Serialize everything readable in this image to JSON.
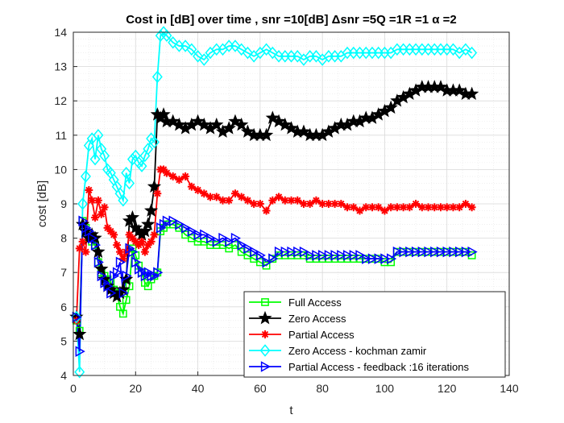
{
  "chart_data": {
    "type": "line",
    "title": "Cost in [dB] over time , snr =10[dB] Δsnr =5Q =1R =1 α =2",
    "xlabel": "t",
    "ylabel": "cost [dB]",
    "xlim": [
      0,
      140
    ],
    "ylim": [
      4,
      14
    ],
    "xticks": [
      0,
      20,
      40,
      60,
      80,
      100,
      120,
      140
    ],
    "yticks": [
      4,
      5,
      6,
      7,
      8,
      9,
      10,
      11,
      12,
      13,
      14
    ],
    "grid": true,
    "minor_grid": true,
    "legend_position": "bottom-right",
    "series": [
      {
        "name": "Full Access",
        "color": "#00ff00",
        "marker": "square",
        "x": [
          1,
          2,
          3,
          4,
          5,
          6,
          7,
          8,
          9,
          10,
          11,
          12,
          13,
          14,
          15,
          16,
          17,
          18,
          19,
          20,
          21,
          22,
          23,
          24,
          25,
          26,
          27,
          28,
          29,
          30,
          32,
          34,
          36,
          38,
          40,
          42,
          44,
          46,
          48,
          50,
          52,
          54,
          56,
          58,
          60,
          62,
          64,
          66,
          68,
          70,
          72,
          74,
          76,
          78,
          80,
          82,
          84,
          86,
          88,
          90,
          92,
          94,
          96,
          98,
          100,
          102,
          104,
          106,
          108,
          110,
          112,
          114,
          116,
          118,
          120,
          122,
          124,
          126,
          128
        ],
        "y": [
          5.6,
          5.3,
          8.5,
          8.3,
          8.0,
          7.9,
          7.8,
          7.3,
          7.0,
          6.9,
          6.8,
          6.7,
          6.5,
          6.4,
          6.0,
          5.8,
          6.2,
          6.6,
          7.7,
          7.5,
          7.2,
          7.0,
          6.7,
          6.6,
          6.8,
          6.9,
          7.0,
          8.2,
          8.3,
          8.4,
          8.4,
          8.3,
          8.1,
          8.0,
          7.9,
          7.9,
          7.8,
          7.8,
          7.8,
          7.7,
          7.8,
          7.6,
          7.5,
          7.4,
          7.3,
          7.2,
          7.4,
          7.5,
          7.5,
          7.5,
          7.5,
          7.5,
          7.4,
          7.4,
          7.4,
          7.4,
          7.4,
          7.4,
          7.4,
          7.4,
          7.4,
          7.4,
          7.4,
          7.4,
          7.3,
          7.3,
          7.6,
          7.6,
          7.6,
          7.6,
          7.6,
          7.6,
          7.6,
          7.6,
          7.6,
          7.6,
          7.6,
          7.6,
          7.5
        ]
      },
      {
        "name": "Zero Access",
        "color": "#000000",
        "marker": "star",
        "x": [
          1,
          2,
          3,
          4,
          5,
          6,
          7,
          8,
          9,
          10,
          11,
          12,
          13,
          14,
          15,
          16,
          17,
          18,
          19,
          20,
          21,
          22,
          23,
          24,
          25,
          26,
          27,
          28,
          29,
          30,
          32,
          34,
          36,
          38,
          40,
          42,
          44,
          46,
          48,
          50,
          52,
          54,
          56,
          58,
          60,
          62,
          64,
          66,
          68,
          70,
          72,
          74,
          76,
          78,
          80,
          82,
          84,
          86,
          88,
          90,
          92,
          94,
          96,
          98,
          100,
          102,
          104,
          106,
          108,
          110,
          112,
          114,
          116,
          118,
          120,
          122,
          124,
          126,
          128
        ],
        "y": [
          5.7,
          5.2,
          8.4,
          8.2,
          8.0,
          8.1,
          8.0,
          7.6,
          7.1,
          6.8,
          6.6,
          6.5,
          6.4,
          6.3,
          6.4,
          6.5,
          6.8,
          8.5,
          8.6,
          8.3,
          8.2,
          8.1,
          8.2,
          8.4,
          8.8,
          9.5,
          11.6,
          11.5,
          11.6,
          11.4,
          11.4,
          11.3,
          11.2,
          11.3,
          11.4,
          11.3,
          11.2,
          11.3,
          11.1,
          11.2,
          11.4,
          11.3,
          11.1,
          11.0,
          11.0,
          11.0,
          11.5,
          11.4,
          11.3,
          11.2,
          11.1,
          11.1,
          11.0,
          11.0,
          11.0,
          11.1,
          11.2,
          11.3,
          11.3,
          11.4,
          11.4,
          11.5,
          11.5,
          11.6,
          11.7,
          11.8,
          12.0,
          12.1,
          12.2,
          12.3,
          12.4,
          12.4,
          12.4,
          12.4,
          12.3,
          12.3,
          12.3,
          12.2,
          12.2
        ]
      },
      {
        "name": "Partial Access",
        "color": "#ff0000",
        "marker": "asterisk",
        "x": [
          1,
          2,
          3,
          4,
          5,
          6,
          7,
          8,
          9,
          10,
          11,
          12,
          13,
          14,
          15,
          16,
          17,
          18,
          19,
          20,
          21,
          22,
          23,
          24,
          25,
          26,
          27,
          28,
          29,
          30,
          32,
          34,
          36,
          38,
          40,
          42,
          44,
          46,
          48,
          50,
          52,
          54,
          56,
          58,
          60,
          62,
          64,
          66,
          68,
          70,
          72,
          74,
          76,
          78,
          80,
          82,
          84,
          86,
          88,
          90,
          92,
          94,
          96,
          98,
          100,
          102,
          104,
          106,
          108,
          110,
          112,
          114,
          116,
          118,
          120,
          122,
          124,
          126,
          128
        ],
        "y": [
          5.6,
          7.7,
          7.9,
          7.6,
          9.4,
          9.1,
          8.6,
          9.1,
          8.7,
          8.9,
          8.3,
          8.2,
          8.1,
          7.8,
          7.6,
          7.4,
          7.6,
          8.1,
          8.0,
          7.9,
          7.8,
          7.9,
          7.6,
          7.8,
          7.9,
          8.1,
          9.3,
          10.0,
          10.0,
          9.9,
          9.8,
          9.7,
          9.8,
          9.5,
          9.4,
          9.3,
          9.2,
          9.2,
          9.1,
          9.1,
          9.3,
          9.2,
          9.1,
          9.0,
          9.0,
          8.8,
          9.1,
          9.2,
          9.1,
          9.1,
          9.1,
          9.0,
          9.0,
          9.1,
          9.0,
          9.0,
          9.0,
          9.0,
          8.9,
          8.9,
          8.8,
          8.9,
          8.9,
          8.9,
          8.8,
          8.9,
          8.9,
          8.9,
          8.9,
          9.0,
          8.9,
          8.9,
          8.9,
          8.9,
          8.9,
          8.9,
          8.9,
          9.0,
          8.9
        ]
      },
      {
        "name": "Zero Access - kochman zamir",
        "color": "#00ffff",
        "marker": "diamond",
        "x": [
          1,
          2,
          3,
          4,
          5,
          6,
          7,
          8,
          9,
          10,
          11,
          12,
          13,
          14,
          15,
          16,
          17,
          18,
          19,
          20,
          21,
          22,
          23,
          24,
          25,
          26,
          27,
          28,
          29,
          30,
          32,
          34,
          36,
          38,
          40,
          42,
          44,
          46,
          48,
          50,
          52,
          54,
          56,
          58,
          60,
          62,
          64,
          66,
          68,
          70,
          72,
          74,
          76,
          78,
          80,
          82,
          84,
          86,
          88,
          90,
          92,
          94,
          96,
          98,
          100,
          102,
          104,
          106,
          108,
          110,
          112,
          114,
          116,
          118,
          120,
          122,
          124,
          126,
          128
        ],
        "y": [
          5.7,
          4.1,
          9.0,
          9.8,
          10.7,
          10.9,
          10.3,
          11.0,
          10.6,
          10.4,
          10.0,
          9.9,
          9.7,
          9.5,
          9.3,
          9.1,
          9.9,
          9.6,
          10.3,
          10.4,
          10.2,
          10.1,
          10.4,
          10.6,
          10.9,
          10.8,
          12.7,
          13.9,
          14.0,
          13.9,
          13.7,
          13.6,
          13.6,
          13.5,
          13.3,
          13.2,
          13.4,
          13.5,
          13.5,
          13.6,
          13.6,
          13.5,
          13.4,
          13.3,
          13.4,
          13.5,
          13.4,
          13.3,
          13.3,
          13.3,
          13.3,
          13.2,
          13.3,
          13.3,
          13.2,
          13.3,
          13.3,
          13.3,
          13.4,
          13.4,
          13.4,
          13.4,
          13.4,
          13.4,
          13.4,
          13.4,
          13.5,
          13.5,
          13.5,
          13.5,
          13.5,
          13.5,
          13.5,
          13.5,
          13.5,
          13.5,
          13.4,
          13.5,
          13.4
        ]
      },
      {
        "name": "Partial Access - feedback :16 iterations",
        "color": "#0000ff",
        "marker": "triangle-right",
        "x": [
          1,
          2,
          3,
          4,
          5,
          6,
          7,
          8,
          9,
          10,
          11,
          12,
          13,
          14,
          15,
          16,
          17,
          18,
          19,
          20,
          21,
          22,
          23,
          24,
          25,
          26,
          27,
          28,
          29,
          30,
          32,
          34,
          36,
          38,
          40,
          42,
          44,
          46,
          48,
          50,
          52,
          54,
          56,
          58,
          60,
          62,
          64,
          66,
          68,
          70,
          72,
          74,
          76,
          78,
          80,
          82,
          84,
          86,
          88,
          90,
          92,
          94,
          96,
          98,
          100,
          102,
          104,
          106,
          108,
          110,
          112,
          114,
          116,
          118,
          120,
          122,
          124,
          126,
          128
        ],
        "y": [
          5.7,
          4.7,
          8.5,
          8.3,
          8.2,
          8.0,
          7.8,
          7.3,
          6.9,
          6.7,
          6.6,
          6.4,
          6.9,
          7.0,
          7.3,
          6.4,
          6.9,
          7.7,
          7.6,
          7.3,
          7.1,
          7.0,
          6.9,
          7.0,
          6.9,
          6.9,
          7.0,
          8.3,
          8.4,
          8.5,
          8.5,
          8.4,
          8.3,
          8.2,
          8.1,
          8.1,
          8.0,
          7.9,
          8.0,
          7.9,
          8.0,
          7.8,
          7.7,
          7.6,
          7.5,
          7.3,
          7.4,
          7.6,
          7.6,
          7.6,
          7.6,
          7.6,
          7.5,
          7.5,
          7.5,
          7.5,
          7.5,
          7.5,
          7.5,
          7.5,
          7.5,
          7.4,
          7.4,
          7.4,
          7.4,
          7.4,
          7.6,
          7.6,
          7.6,
          7.6,
          7.6,
          7.6,
          7.6,
          7.6,
          7.6,
          7.6,
          7.6,
          7.6,
          7.6
        ]
      }
    ]
  }
}
